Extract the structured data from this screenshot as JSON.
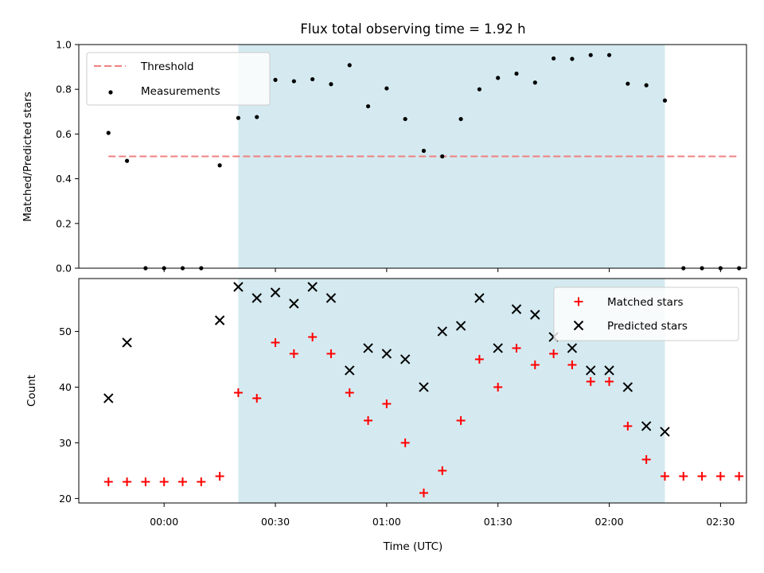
{
  "figure": {
    "title": "Flux total observing time = 1.92 h",
    "shade_color": "#d4eaf0",
    "threshold_color": "#f08080",
    "matched_color": "#ff0000",
    "predicted_color": "#000000"
  },
  "chart_data": [
    {
      "type": "scatter",
      "title": "Flux total observing time = 1.92 h",
      "ylabel": "Matched/Predicted stars",
      "xlabel": "",
      "xlim": [
        "-00:23",
        "02:37"
      ],
      "ylim": [
        0,
        1.0
      ],
      "yticks": [
        "0.0",
        "0.2",
        "0.4",
        "0.6",
        "0.8",
        "1.0"
      ],
      "yticks_values": [
        0,
        0.2,
        0.4,
        0.6,
        0.8,
        1.0
      ],
      "xticks_values": [
        "00:00",
        "00:30",
        "01:00",
        "01:30",
        "02:00",
        "02:30"
      ],
      "shaded_span": [
        "00:20",
        "02:15"
      ],
      "legend": {
        "placement": "upper-left",
        "entries": [
          "Threshold",
          "Measurements"
        ]
      },
      "threshold": {
        "name": "Threshold",
        "value": 0.5,
        "x_range": [
          "-00:15",
          "02:35"
        ],
        "style": "dashed"
      },
      "series": [
        {
          "name": "Measurements",
          "x": [
            "-00:15",
            "-00:10",
            "-00:05",
            "00:00",
            "00:05",
            "00:10",
            "00:15",
            "00:20",
            "00:25",
            "00:30",
            "00:35",
            "00:40",
            "00:45",
            "00:50",
            "00:55",
            "01:00",
            "01:05",
            "01:10",
            "01:15",
            "01:20",
            "01:25",
            "01:30",
            "01:35",
            "01:40",
            "01:45",
            "01:50",
            "01:55",
            "02:00",
            "02:05",
            "02:10",
            "02:15",
            "02:20",
            "02:25",
            "02:30",
            "02:35"
          ],
          "y": [
            0.605,
            0.48,
            0,
            0,
            0,
            0,
            0.46,
            0.672,
            0.676,
            0.842,
            0.836,
            0.845,
            0.823,
            0.908,
            0.724,
            0.804,
            0.667,
            0.525,
            0.5,
            0.667,
            0.8,
            0.851,
            0.87,
            0.83,
            0.938,
            0.936,
            0.953,
            0.953,
            0.825,
            0.818,
            0.75,
            0,
            0,
            0,
            0
          ]
        }
      ]
    },
    {
      "type": "scatter",
      "ylabel": "Count",
      "xlabel": "Time (UTC)",
      "xlim": [
        "-00:23",
        "02:37"
      ],
      "ylim": [
        19.2,
        59.5
      ],
      "yticks": [
        "20",
        "30",
        "40",
        "50"
      ],
      "yticks_values": [
        20,
        30,
        40,
        50
      ],
      "xticks": [
        "00:00",
        "00:30",
        "01:00",
        "01:30",
        "02:00",
        "02:30"
      ],
      "xticks_values": [
        "00:00",
        "00:30",
        "01:00",
        "01:30",
        "02:00",
        "02:30"
      ],
      "shaded_span": [
        "00:20",
        "02:15"
      ],
      "legend": {
        "placement": "upper-right",
        "entries": [
          "Matched stars",
          "Predicted stars"
        ]
      },
      "series": [
        {
          "name": "Matched stars",
          "marker": "plus",
          "x": [
            "-00:15",
            "-00:10",
            "-00:05",
            "00:00",
            "00:05",
            "00:10",
            "00:15",
            "00:20",
            "00:25",
            "00:30",
            "00:35",
            "00:40",
            "00:45",
            "00:50",
            "00:55",
            "01:00",
            "01:05",
            "01:10",
            "01:15",
            "01:20",
            "01:25",
            "01:30",
            "01:35",
            "01:40",
            "01:45",
            "01:50",
            "01:55",
            "02:00",
            "02:05",
            "02:10",
            "02:15",
            "02:20",
            "02:25",
            "02:30",
            "02:35"
          ],
          "y": [
            23,
            23,
            23,
            23,
            23,
            23,
            24,
            39,
            38,
            48,
            46,
            49,
            46,
            39,
            34,
            37,
            30,
            21,
            25,
            34,
            45,
            40,
            47,
            44,
            46,
            44,
            41,
            41,
            33,
            27,
            24,
            24,
            24,
            24,
            24
          ]
        },
        {
          "name": "Predicted stars",
          "marker": "x",
          "x": [
            "-00:15",
            "-00:10",
            "00:15",
            "00:20",
            "00:25",
            "00:30",
            "00:35",
            "00:40",
            "00:45",
            "00:50",
            "00:55",
            "01:00",
            "01:05",
            "01:10",
            "01:15",
            "01:20",
            "01:25",
            "01:30",
            "01:35",
            "01:40",
            "01:45",
            "01:50",
            "01:55",
            "02:00",
            "02:05",
            "02:10",
            "02:15"
          ],
          "y": [
            38,
            48,
            52,
            58,
            56,
            57,
            55,
            58,
            56,
            43,
            47,
            46,
            45,
            40,
            50,
            51,
            56,
            47,
            54,
            53,
            49,
            47,
            43,
            43,
            40,
            33,
            32
          ]
        }
      ]
    }
  ]
}
